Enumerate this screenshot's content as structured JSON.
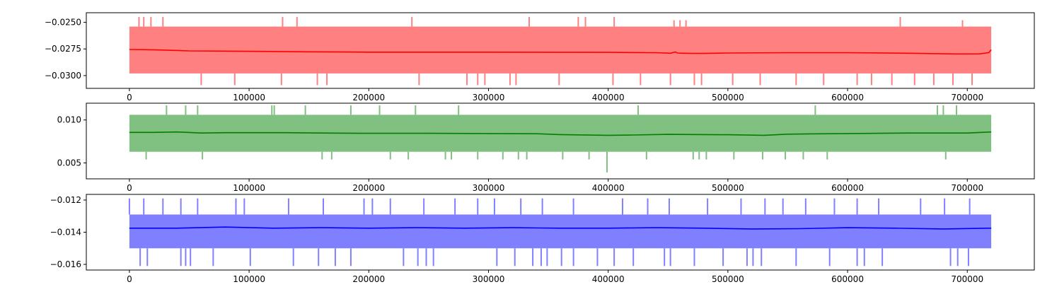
{
  "chart_data": [
    {
      "type": "line",
      "title": "",
      "xlabel": "",
      "ylabel": "",
      "xlim": [
        -36000,
        756000
      ],
      "ylim": [
        -0.0312,
        -0.0241
      ],
      "xticks": [
        0,
        100000,
        200000,
        300000,
        400000,
        500000,
        600000,
        700000
      ],
      "xtick_labels": [
        "0",
        "100000",
        "200000",
        "300000",
        "400000",
        "500000",
        "600000",
        "700000"
      ],
      "yticks": [
        -0.025,
        -0.0275,
        -0.03
      ],
      "ytick_labels": [
        "−0.0250",
        "−0.0275",
        "−0.0300"
      ],
      "grid": false,
      "band": {
        "color": "#ff8080",
        "x_range": [
          0,
          720000
        ],
        "low": -0.0298,
        "high": -0.0254
      },
      "outliers_high": [
        [
          8000,
          -0.0245
        ],
        [
          12000,
          -0.0245
        ],
        [
          18000,
          -0.0245
        ],
        [
          28000,
          -0.0245
        ],
        [
          128000,
          -0.0245
        ],
        [
          140000,
          -0.0245
        ],
        [
          236000,
          -0.0245
        ],
        [
          334000,
          -0.0245
        ],
        [
          375000,
          -0.0245
        ],
        [
          381000,
          -0.0245
        ],
        [
          405000,
          -0.0245
        ],
        [
          455000,
          -0.0248
        ],
        [
          460000,
          -0.0248
        ],
        [
          465000,
          -0.0248
        ],
        [
          644000,
          -0.0245
        ],
        [
          696000,
          -0.0248
        ]
      ],
      "outliers_low": [
        [
          60000,
          -0.0309
        ],
        [
          88000,
          -0.0309
        ],
        [
          127000,
          -0.0309
        ],
        [
          157000,
          -0.0309
        ],
        [
          165000,
          -0.0309
        ],
        [
          242000,
          -0.0309
        ],
        [
          282000,
          -0.0309
        ],
        [
          291000,
          -0.0309
        ],
        [
          297000,
          -0.0309
        ],
        [
          318000,
          -0.0309
        ],
        [
          323000,
          -0.0309
        ],
        [
          359000,
          -0.0309
        ],
        [
          404000,
          -0.0309
        ],
        [
          427000,
          -0.0309
        ],
        [
          452000,
          -0.0309
        ],
        [
          472000,
          -0.0309
        ],
        [
          478000,
          -0.0309
        ],
        [
          504000,
          -0.0309
        ],
        [
          527000,
          -0.0309
        ],
        [
          557000,
          -0.0309
        ],
        [
          580000,
          -0.0309
        ],
        [
          608000,
          -0.0309
        ],
        [
          620000,
          -0.0309
        ],
        [
          637000,
          -0.0309
        ],
        [
          656000,
          -0.0309
        ],
        [
          672000,
          -0.0309
        ],
        [
          688000,
          -0.0309
        ],
        [
          704000,
          -0.0309
        ]
      ],
      "series": [
        {
          "color": "#ff0000",
          "x": [
            0,
            20000,
            50000,
            100000,
            150000,
            200000,
            300000,
            400000,
            440000,
            452000,
            456000,
            458000,
            462000,
            470000,
            480000,
            500000,
            550000,
            600000,
            650000,
            690000,
            710000,
            718000,
            720000
          ],
          "values": [
            -0.02755,
            -0.02758,
            -0.02768,
            -0.02772,
            -0.02777,
            -0.0278,
            -0.0278,
            -0.02782,
            -0.02785,
            -0.0279,
            -0.02778,
            -0.02788,
            -0.0279,
            -0.02792,
            -0.02792,
            -0.02788,
            -0.02785,
            -0.02785,
            -0.0279,
            -0.02797,
            -0.02796,
            -0.02785,
            -0.02758
          ]
        }
      ]
    },
    {
      "type": "line",
      "title": "",
      "xlabel": "",
      "ylabel": "",
      "xlim": [
        -36000,
        756000
      ],
      "ylim": [
        0.00315,
        0.01195
      ],
      "xticks": [
        0,
        100000,
        200000,
        300000,
        400000,
        500000,
        600000,
        700000
      ],
      "xtick_labels": [
        "0",
        "100000",
        "200000",
        "300000",
        "400000",
        "500000",
        "600000",
        "700000"
      ],
      "yticks": [
        0.005,
        0.01
      ],
      "ytick_labels": [
        "0.005",
        "0.010"
      ],
      "grid": false,
      "band": {
        "color": "#80c080",
        "x_range": [
          0,
          720000
        ],
        "low": 0.0063,
        "high": 0.0106
      },
      "outliers_high": [
        [
          31000,
          0.0117
        ],
        [
          47000,
          0.0117
        ],
        [
          57000,
          0.0117
        ],
        [
          119000,
          0.0117
        ],
        [
          121000,
          0.0117
        ],
        [
          147000,
          0.0117
        ],
        [
          185000,
          0.0117
        ],
        [
          209000,
          0.0117
        ],
        [
          239000,
          0.0117
        ],
        [
          275000,
          0.0117
        ],
        [
          425000,
          0.0117
        ],
        [
          573000,
          0.0117
        ],
        [
          675000,
          0.0117
        ],
        [
          680000,
          0.0117
        ],
        [
          691000,
          0.0117
        ]
      ],
      "outliers_low": [
        [
          14000,
          0.0054
        ],
        [
          61000,
          0.0054
        ],
        [
          161000,
          0.0054
        ],
        [
          169000,
          0.0054
        ],
        [
          218000,
          0.0054
        ],
        [
          233000,
          0.0054
        ],
        [
          264000,
          0.0054
        ],
        [
          269000,
          0.0054
        ],
        [
          291000,
          0.0054
        ],
        [
          312000,
          0.0054
        ],
        [
          325000,
          0.0054
        ],
        [
          332000,
          0.0054
        ],
        [
          362000,
          0.0054
        ],
        [
          384000,
          0.0054
        ],
        [
          399000,
          0.0039
        ],
        [
          432000,
          0.0054
        ],
        [
          471000,
          0.0054
        ],
        [
          476000,
          0.0054
        ],
        [
          482000,
          0.0054
        ],
        [
          505000,
          0.0054
        ],
        [
          529000,
          0.0054
        ],
        [
          548000,
          0.0054
        ],
        [
          563000,
          0.0054
        ],
        [
          583000,
          0.0054
        ],
        [
          682000,
          0.0054
        ]
      ],
      "series": [
        {
          "color": "#008000",
          "x": [
            0,
            20000,
            40000,
            60000,
            80000,
            100000,
            130000,
            160000,
            200000,
            250000,
            300000,
            340000,
            360000,
            400000,
            420000,
            450000,
            500000,
            530000,
            550000,
            600000,
            650000,
            700000,
            720000
          ],
          "values": [
            0.00855,
            0.00855,
            0.0086,
            0.00848,
            0.00852,
            0.00852,
            0.00852,
            0.00848,
            0.00845,
            0.00845,
            0.00842,
            0.0084,
            0.0083,
            0.00822,
            0.00825,
            0.00832,
            0.00828,
            0.00822,
            0.00835,
            0.00842,
            0.00848,
            0.00848,
            0.0086
          ]
        }
      ]
    },
    {
      "type": "line",
      "title": "",
      "xlabel": "",
      "ylabel": "",
      "xlim": [
        -36000,
        756000
      ],
      "ylim": [
        -0.01635,
        -0.01165
      ],
      "xticks": [
        0,
        100000,
        200000,
        300000,
        400000,
        500000,
        600000,
        700000
      ],
      "xtick_labels": [
        "0",
        "100000",
        "200000",
        "300000",
        "400000",
        "500000",
        "600000",
        "700000"
      ],
      "yticks": [
        -0.012,
        -0.014,
        -0.016
      ],
      "ytick_labels": [
        "−0.012",
        "−0.014",
        "−0.016"
      ],
      "grid": false,
      "band": {
        "color": "#8080ff",
        "x_range": [
          0,
          720000
        ],
        "low": -0.015,
        "high": -0.0129
      },
      "outliers_high": [
        [
          0,
          -0.0119
        ],
        [
          12000,
          -0.0119
        ],
        [
          28000,
          -0.0119
        ],
        [
          43000,
          -0.0119
        ],
        [
          57000,
          -0.0119
        ],
        [
          89000,
          -0.0119
        ],
        [
          96000,
          -0.0119
        ],
        [
          133000,
          -0.0119
        ],
        [
          162000,
          -0.0119
        ],
        [
          196000,
          -0.0119
        ],
        [
          203000,
          -0.0119
        ],
        [
          218000,
          -0.0119
        ],
        [
          246000,
          -0.0119
        ],
        [
          272000,
          -0.0119
        ],
        [
          291000,
          -0.0119
        ],
        [
          305000,
          -0.0119
        ],
        [
          327000,
          -0.0119
        ],
        [
          345000,
          -0.0119
        ],
        [
          371000,
          -0.0119
        ],
        [
          412000,
          -0.0119
        ],
        [
          433000,
          -0.0119
        ],
        [
          451000,
          -0.0119
        ],
        [
          483000,
          -0.0119
        ],
        [
          511000,
          -0.0119
        ],
        [
          531000,
          -0.0119
        ],
        [
          546000,
          -0.0119
        ],
        [
          565000,
          -0.0119
        ],
        [
          589000,
          -0.0119
        ],
        [
          608000,
          -0.0119
        ],
        [
          626000,
          -0.0119
        ],
        [
          661000,
          -0.0119
        ],
        [
          681000,
          -0.0119
        ],
        [
          702000,
          -0.0119
        ]
      ],
      "outliers_low": [
        [
          9000,
          -0.0161
        ],
        [
          15000,
          -0.0161
        ],
        [
          43000,
          -0.0161
        ],
        [
          47000,
          -0.0161
        ],
        [
          51000,
          -0.0161
        ],
        [
          70000,
          -0.0161
        ],
        [
          101000,
          -0.0161
        ],
        [
          137000,
          -0.0161
        ],
        [
          158000,
          -0.0161
        ],
        [
          172000,
          -0.0161
        ],
        [
          185000,
          -0.0161
        ],
        [
          229000,
          -0.0161
        ],
        [
          241000,
          -0.0161
        ],
        [
          248000,
          -0.0161
        ],
        [
          254000,
          -0.0161
        ],
        [
          307000,
          -0.0161
        ],
        [
          322000,
          -0.0161
        ],
        [
          337000,
          -0.0161
        ],
        [
          344000,
          -0.0161
        ],
        [
          349000,
          -0.0161
        ],
        [
          361000,
          -0.0161
        ],
        [
          371000,
          -0.0161
        ],
        [
          391000,
          -0.0161
        ],
        [
          405000,
          -0.0161
        ],
        [
          421000,
          -0.0161
        ],
        [
          447000,
          -0.0161
        ],
        [
          452000,
          -0.0161
        ],
        [
          472000,
          -0.0161
        ],
        [
          496000,
          -0.0161
        ],
        [
          516000,
          -0.0161
        ],
        [
          521000,
          -0.0161
        ],
        [
          528000,
          -0.0161
        ],
        [
          557000,
          -0.0161
        ],
        [
          585000,
          -0.0161
        ],
        [
          608000,
          -0.0161
        ],
        [
          614000,
          -0.0161
        ],
        [
          629000,
          -0.0161
        ],
        [
          686000,
          -0.0161
        ],
        [
          692000,
          -0.0161
        ],
        [
          701000,
          -0.0161
        ]
      ],
      "series": [
        {
          "color": "#0000ff",
          "x": [
            0,
            40000,
            80000,
            120000,
            160000,
            200000,
            240000,
            280000,
            320000,
            360000,
            400000,
            440000,
            480000,
            520000,
            560000,
            600000,
            640000,
            680000,
            720000
          ],
          "values": [
            -0.01375,
            -0.01375,
            -0.01368,
            -0.01375,
            -0.01372,
            -0.01375,
            -0.01372,
            -0.01375,
            -0.01372,
            -0.01375,
            -0.01375,
            -0.01372,
            -0.01375,
            -0.0138,
            -0.01378,
            -0.01372,
            -0.01375,
            -0.0138,
            -0.01375
          ]
        }
      ]
    }
  ]
}
